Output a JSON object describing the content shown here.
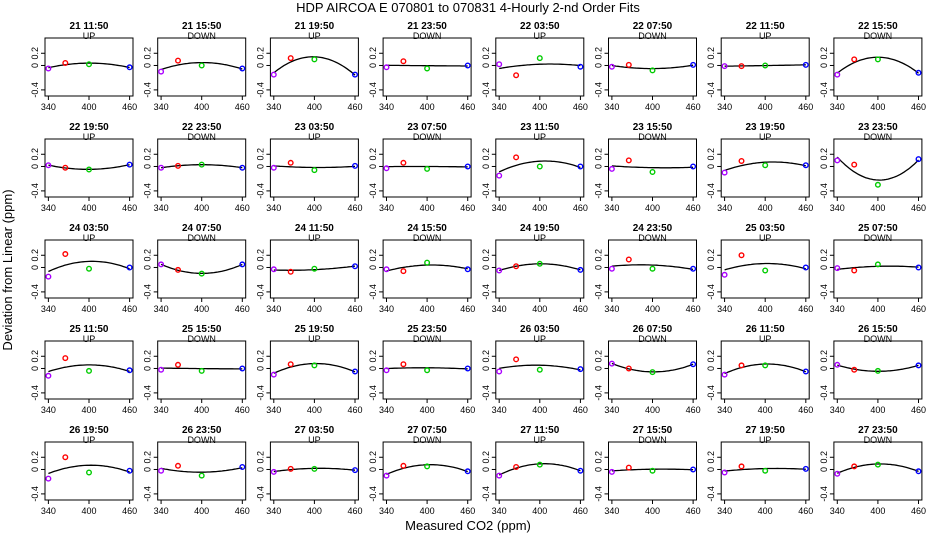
{
  "title": "HDP    AIRCOA E    070801 to 070831    4-Hourly 2-nd Order Fits",
  "xlabel": "Measured CO2 (ppm)",
  "ylabel": "Deviation from Linear (ppm)",
  "chart_data": {
    "type": "scatter",
    "grid": "5x8 small multiples",
    "xlim": [
      335,
      465
    ],
    "ylim": [
      -0.5,
      0.45
    ],
    "x_ticks": [
      "340",
      "400",
      "460"
    ],
    "y_ticks": [
      "-0.4",
      "0",
      "0.2"
    ],
    "colors": {
      "cal1": "#aa00ff",
      "cal2": "#ff0000",
      "cal3": "#00cc00",
      "cal4": "#0000ff",
      "fit": "#000000"
    },
    "x": [
      340,
      365,
      400,
      460
    ],
    "panels": [
      {
        "time": "21 11:50",
        "dir": "UP",
        "y": [
          -0.05,
          0.04,
          0.02,
          -0.03
        ]
      },
      {
        "time": "21 15:50",
        "dir": "DOWN",
        "y": [
          -0.1,
          0.08,
          0.0,
          -0.05
        ]
      },
      {
        "time": "21 19:50",
        "dir": "UP",
        "y": [
          -0.15,
          0.12,
          0.1,
          -0.15
        ]
      },
      {
        "time": "21 23:50",
        "dir": "DOWN",
        "y": [
          -0.03,
          0.07,
          -0.05,
          0.0
        ]
      },
      {
        "time": "22 03:50",
        "dir": "UP",
        "y": [
          0.02,
          -0.16,
          0.12,
          -0.02
        ]
      },
      {
        "time": "22 07:50",
        "dir": "DOWN",
        "y": [
          -0.02,
          0.01,
          -0.08,
          0.01
        ]
      },
      {
        "time": "22 11:50",
        "dir": "UP",
        "y": [
          -0.01,
          -0.01,
          0.0,
          0.01
        ]
      },
      {
        "time": "22 15:50",
        "dir": "DOWN",
        "y": [
          -0.15,
          0.1,
          0.1,
          -0.12
        ]
      },
      {
        "time": "22 19:50",
        "dir": "UP",
        "y": [
          0.02,
          -0.02,
          -0.05,
          0.03
        ]
      },
      {
        "time": "22 23:50",
        "dir": "DOWN",
        "y": [
          -0.02,
          0.01,
          0.03,
          -0.02
        ]
      },
      {
        "time": "23 03:50",
        "dir": "UP",
        "y": [
          -0.02,
          0.06,
          -0.06,
          0.01
        ]
      },
      {
        "time": "23 07:50",
        "dir": "DOWN",
        "y": [
          -0.03,
          0.06,
          -0.04,
          0.0
        ]
      },
      {
        "time": "23 11:50",
        "dir": "UP",
        "y": [
          -0.15,
          0.15,
          0.0,
          0.0
        ]
      },
      {
        "time": "23 15:50",
        "dir": "DOWN",
        "y": [
          -0.04,
          0.1,
          -0.09,
          0.0
        ]
      },
      {
        "time": "23 19:50",
        "dir": "UP",
        "y": [
          -0.1,
          0.09,
          0.02,
          0.02
        ]
      },
      {
        "time": "23 23:50",
        "dir": "DOWN",
        "y": [
          0.1,
          0.03,
          -0.3,
          0.12
        ]
      },
      {
        "time": "24 03:50",
        "dir": "UP",
        "y": [
          -0.15,
          0.22,
          -0.02,
          0.0
        ]
      },
      {
        "time": "24 07:50",
        "dir": "DOWN",
        "y": [
          0.05,
          -0.04,
          -0.1,
          0.05
        ]
      },
      {
        "time": "24 11:50",
        "dir": "UP",
        "y": [
          -0.03,
          -0.07,
          -0.02,
          0.02
        ]
      },
      {
        "time": "24 15:50",
        "dir": "DOWN",
        "y": [
          -0.03,
          -0.06,
          0.08,
          -0.03
        ]
      },
      {
        "time": "24 19:50",
        "dir": "UP",
        "y": [
          -0.05,
          0.02,
          0.06,
          -0.04
        ]
      },
      {
        "time": "24 23:50",
        "dir": "DOWN",
        "y": [
          -0.02,
          0.13,
          -0.02,
          -0.02
        ]
      },
      {
        "time": "25 03:50",
        "dir": "UP",
        "y": [
          -0.12,
          0.2,
          -0.05,
          0.0
        ]
      },
      {
        "time": "25 07:50",
        "dir": "DOWN",
        "y": [
          -0.01,
          -0.05,
          0.05,
          0.0
        ]
      },
      {
        "time": "25 11:50",
        "dir": "UP",
        "y": [
          -0.12,
          0.17,
          -0.04,
          -0.03
        ]
      },
      {
        "time": "25 15:50",
        "dir": "DOWN",
        "y": [
          -0.02,
          0.06,
          -0.04,
          0.0
        ]
      },
      {
        "time": "25 19:50",
        "dir": "UP",
        "y": [
          -0.1,
          0.07,
          0.05,
          -0.05
        ]
      },
      {
        "time": "25 23:50",
        "dir": "DOWN",
        "y": [
          -0.03,
          0.07,
          -0.03,
          0.0
        ]
      },
      {
        "time": "26 03:50",
        "dir": "UP",
        "y": [
          -0.05,
          0.15,
          -0.02,
          -0.01
        ]
      },
      {
        "time": "26 07:50",
        "dir": "DOWN",
        "y": [
          0.08,
          0.0,
          -0.06,
          0.07
        ]
      },
      {
        "time": "26 11:50",
        "dir": "UP",
        "y": [
          -0.1,
          0.05,
          0.05,
          -0.05
        ]
      },
      {
        "time": "26 15:50",
        "dir": "DOWN",
        "y": [
          0.06,
          -0.02,
          -0.04,
          0.05
        ]
      },
      {
        "time": "26 19:50",
        "dir": "UP",
        "y": [
          -0.15,
          0.2,
          -0.05,
          -0.02
        ]
      },
      {
        "time": "26 23:50",
        "dir": "DOWN",
        "y": [
          -0.02,
          0.06,
          -0.1,
          0.04
        ]
      },
      {
        "time": "27 03:50",
        "dir": "UP",
        "y": [
          -0.04,
          0.01,
          0.01,
          -0.01
        ]
      },
      {
        "time": "27 07:50",
        "dir": "DOWN",
        "y": [
          -0.1,
          0.06,
          0.05,
          -0.03
        ]
      },
      {
        "time": "27 11:50",
        "dir": "UP",
        "y": [
          -0.1,
          0.04,
          0.08,
          -0.02
        ]
      },
      {
        "time": "27 15:50",
        "dir": "DOWN",
        "y": [
          -0.04,
          0.03,
          -0.02,
          0.0
        ]
      },
      {
        "time": "27 19:50",
        "dir": "UP",
        "y": [
          -0.05,
          0.05,
          -0.02,
          0.01
        ]
      },
      {
        "time": "27 23:50",
        "dir": "DOWN",
        "y": [
          -0.07,
          0.05,
          0.08,
          -0.03
        ]
      }
    ]
  }
}
